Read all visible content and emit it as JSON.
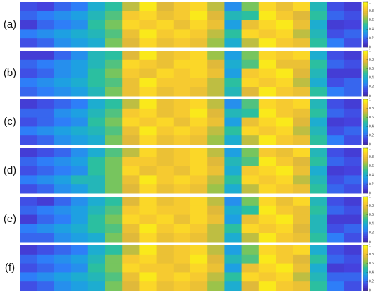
{
  "chart_data": [
    {
      "type": "heatmap",
      "label": "(a)",
      "zlim": [
        0,
        1
      ],
      "zticks": [
        0,
        0.2,
        0.4,
        0.6,
        0.8,
        1
      ],
      "colorscale": [
        "#3e26a8",
        "#4543e0",
        "#2e7ef8",
        "#1aa9dc",
        "#2bbfa0",
        "#8ac64e",
        "#e0b93a",
        "#fcce2e",
        "#f9fb0e"
      ],
      "values": [
        [
          0.15,
          0.12,
          0.2,
          0.25,
          0.4,
          0.5,
          0.7,
          0.95,
          0.75,
          0.85,
          0.9,
          0.7,
          0.3,
          0.6,
          0.9,
          0.8,
          0.9,
          0.45,
          0.15,
          0.1
        ],
        [
          0.2,
          0.25,
          0.3,
          0.35,
          0.45,
          0.55,
          0.85,
          0.9,
          0.8,
          0.85,
          0.95,
          0.75,
          0.45,
          0.5,
          0.95,
          0.85,
          0.75,
          0.5,
          0.2,
          0.15
        ],
        [
          0.1,
          0.2,
          0.25,
          0.3,
          0.5,
          0.6,
          0.9,
          0.85,
          0.9,
          0.8,
          0.9,
          0.8,
          0.35,
          0.8,
          0.9,
          0.95,
          0.8,
          0.4,
          0.1,
          0.12
        ],
        [
          0.25,
          0.3,
          0.35,
          0.4,
          0.45,
          0.55,
          0.8,
          0.95,
          0.85,
          0.9,
          0.85,
          0.7,
          0.5,
          0.9,
          0.85,
          0.9,
          0.7,
          0.45,
          0.15,
          0.2
        ],
        [
          0.15,
          0.2,
          0.3,
          0.35,
          0.4,
          0.6,
          0.75,
          0.9,
          0.8,
          0.85,
          0.8,
          0.65,
          0.4,
          0.7,
          0.95,
          0.85,
          0.8,
          0.5,
          0.25,
          0.15
        ]
      ]
    },
    {
      "type": "heatmap",
      "label": "(b)",
      "zlim": [
        0,
        1
      ],
      "zticks": [
        0,
        0.2,
        0.4,
        0.6,
        0.8,
        1
      ],
      "colorscale": [
        "#3e26a8",
        "#4543e0",
        "#2e7ef8",
        "#1aa9dc",
        "#2bbfa0",
        "#8ac64e",
        "#e0b93a",
        "#fcce2e",
        "#f9fb0e"
      ],
      "values": [
        [
          0.1,
          0.1,
          0.2,
          0.3,
          0.45,
          0.5,
          0.75,
          0.95,
          0.8,
          0.85,
          0.9,
          0.65,
          0.35,
          0.6,
          0.9,
          0.85,
          0.9,
          0.4,
          0.15,
          0.1
        ],
        [
          0.2,
          0.25,
          0.3,
          0.35,
          0.45,
          0.55,
          0.9,
          0.85,
          0.8,
          0.9,
          0.9,
          0.75,
          0.4,
          0.55,
          0.95,
          0.8,
          0.8,
          0.5,
          0.2,
          0.15
        ],
        [
          0.15,
          0.2,
          0.3,
          0.35,
          0.5,
          0.6,
          0.85,
          0.8,
          0.9,
          0.85,
          0.9,
          0.8,
          0.35,
          0.85,
          0.9,
          0.95,
          0.75,
          0.45,
          0.1,
          0.1
        ],
        [
          0.25,
          0.3,
          0.35,
          0.4,
          0.5,
          0.55,
          0.8,
          0.95,
          0.85,
          0.85,
          0.85,
          0.7,
          0.5,
          0.9,
          0.85,
          0.9,
          0.7,
          0.4,
          0.15,
          0.2
        ],
        [
          0.2,
          0.25,
          0.3,
          0.35,
          0.45,
          0.6,
          0.8,
          0.9,
          0.8,
          0.85,
          0.8,
          0.7,
          0.45,
          0.75,
          0.95,
          0.85,
          0.8,
          0.5,
          0.25,
          0.2
        ]
      ]
    },
    {
      "type": "heatmap",
      "label": "(c)",
      "zlim": [
        0,
        1
      ],
      "zticks": [
        0,
        0.2,
        0.4,
        0.6,
        0.8,
        1
      ],
      "colorscale": [
        "#3e26a8",
        "#4543e0",
        "#2e7ef8",
        "#1aa9dc",
        "#2bbfa0",
        "#8ac64e",
        "#e0b93a",
        "#fcce2e",
        "#f9fb0e"
      ],
      "values": [
        [
          0.1,
          0.15,
          0.2,
          0.25,
          0.4,
          0.5,
          0.7,
          0.95,
          0.8,
          0.85,
          0.9,
          0.7,
          0.3,
          0.55,
          0.9,
          0.85,
          0.9,
          0.45,
          0.15,
          0.1
        ],
        [
          0.2,
          0.2,
          0.3,
          0.35,
          0.45,
          0.55,
          0.85,
          0.9,
          0.8,
          0.85,
          0.95,
          0.75,
          0.45,
          0.5,
          0.95,
          0.85,
          0.8,
          0.5,
          0.2,
          0.15
        ],
        [
          0.15,
          0.2,
          0.25,
          0.3,
          0.5,
          0.6,
          0.9,
          0.85,
          0.9,
          0.8,
          0.9,
          0.8,
          0.35,
          0.8,
          0.9,
          0.95,
          0.75,
          0.4,
          0.1,
          0.12
        ],
        [
          0.25,
          0.3,
          0.35,
          0.4,
          0.45,
          0.55,
          0.8,
          0.95,
          0.85,
          0.9,
          0.85,
          0.7,
          0.5,
          0.9,
          0.85,
          0.9,
          0.7,
          0.45,
          0.15,
          0.2
        ],
        [
          0.15,
          0.2,
          0.3,
          0.35,
          0.4,
          0.6,
          0.75,
          0.9,
          0.8,
          0.85,
          0.8,
          0.65,
          0.4,
          0.7,
          0.95,
          0.85,
          0.8,
          0.5,
          0.25,
          0.15
        ]
      ]
    },
    {
      "type": "heatmap",
      "label": "(d)",
      "zlim": [
        0,
        1
      ],
      "zticks": [
        0,
        0.2,
        0.4,
        0.6,
        0.8,
        1
      ],
      "colorscale": [
        "#3e26a8",
        "#4543e0",
        "#2e7ef8",
        "#1aa9dc",
        "#2bbfa0",
        "#8ac64e",
        "#e0b93a",
        "#fcce2e",
        "#f9fb0e"
      ],
      "values": [
        [
          0.1,
          0.15,
          0.2,
          0.3,
          0.4,
          0.55,
          0.7,
          0.9,
          0.8,
          0.85,
          0.9,
          0.7,
          0.35,
          0.6,
          0.85,
          0.8,
          0.9,
          0.45,
          0.15,
          0.1
        ],
        [
          0.2,
          0.25,
          0.3,
          0.35,
          0.5,
          0.6,
          0.85,
          0.85,
          0.8,
          0.85,
          0.9,
          0.75,
          0.45,
          0.55,
          0.95,
          0.85,
          0.75,
          0.5,
          0.2,
          0.15
        ],
        [
          0.15,
          0.2,
          0.25,
          0.3,
          0.5,
          0.6,
          0.9,
          0.8,
          0.85,
          0.8,
          0.9,
          0.8,
          0.4,
          0.85,
          0.9,
          0.95,
          0.8,
          0.4,
          0.1,
          0.12
        ],
        [
          0.25,
          0.3,
          0.35,
          0.45,
          0.45,
          0.6,
          0.8,
          0.95,
          0.85,
          0.9,
          0.85,
          0.7,
          0.5,
          0.9,
          0.85,
          0.9,
          0.7,
          0.45,
          0.15,
          0.2
        ],
        [
          0.15,
          0.2,
          0.3,
          0.35,
          0.45,
          0.6,
          0.75,
          0.9,
          0.8,
          0.85,
          0.8,
          0.65,
          0.4,
          0.7,
          0.9,
          0.85,
          0.8,
          0.5,
          0.2,
          0.15
        ]
      ]
    },
    {
      "type": "heatmap",
      "label": "(e)",
      "zlim": [
        0,
        1
      ],
      "zticks": [
        0,
        0.2,
        0.4,
        0.6,
        0.8,
        1
      ],
      "colorscale": [
        "#3e26a8",
        "#4543e0",
        "#2e7ef8",
        "#1aa9dc",
        "#2bbfa0",
        "#8ac64e",
        "#e0b93a",
        "#fcce2e",
        "#f9fb0e"
      ],
      "values": [
        [
          0.15,
          0.1,
          0.2,
          0.3,
          0.4,
          0.5,
          0.75,
          0.9,
          0.8,
          0.85,
          0.9,
          0.7,
          0.3,
          0.6,
          0.9,
          0.8,
          0.9,
          0.45,
          0.15,
          0.1
        ],
        [
          0.2,
          0.25,
          0.3,
          0.35,
          0.45,
          0.55,
          0.85,
          0.9,
          0.85,
          0.85,
          0.9,
          0.75,
          0.4,
          0.5,
          0.95,
          0.85,
          0.8,
          0.5,
          0.2,
          0.15
        ],
        [
          0.1,
          0.2,
          0.25,
          0.35,
          0.5,
          0.6,
          0.9,
          0.85,
          0.9,
          0.8,
          0.9,
          0.8,
          0.35,
          0.8,
          0.9,
          0.95,
          0.8,
          0.45,
          0.1,
          0.1
        ],
        [
          0.25,
          0.3,
          0.35,
          0.4,
          0.5,
          0.55,
          0.8,
          0.95,
          0.85,
          0.9,
          0.85,
          0.7,
          0.5,
          0.9,
          0.85,
          0.9,
          0.75,
          0.45,
          0.15,
          0.2
        ],
        [
          0.2,
          0.2,
          0.3,
          0.35,
          0.4,
          0.6,
          0.75,
          0.9,
          0.8,
          0.85,
          0.8,
          0.7,
          0.4,
          0.7,
          0.95,
          0.85,
          0.8,
          0.5,
          0.25,
          0.15
        ]
      ]
    },
    {
      "type": "heatmap",
      "label": "(f)",
      "zlim": [
        0,
        1
      ],
      "zticks": [
        0,
        0.2,
        0.4,
        0.6,
        0.8,
        1
      ],
      "colorscale": [
        "#3e26a8",
        "#4543e0",
        "#2e7ef8",
        "#1aa9dc",
        "#2bbfa0",
        "#8ac64e",
        "#e0b93a",
        "#fcce2e",
        "#f9fb0e"
      ],
      "values": [
        [
          0.1,
          0.15,
          0.2,
          0.25,
          0.4,
          0.5,
          0.7,
          0.95,
          0.8,
          0.85,
          0.9,
          0.7,
          0.35,
          0.6,
          0.9,
          0.85,
          0.9,
          0.4,
          0.15,
          0.1
        ],
        [
          0.2,
          0.25,
          0.3,
          0.35,
          0.45,
          0.6,
          0.85,
          0.9,
          0.8,
          0.85,
          0.95,
          0.75,
          0.45,
          0.55,
          0.95,
          0.85,
          0.75,
          0.5,
          0.2,
          0.15
        ],
        [
          0.15,
          0.2,
          0.25,
          0.3,
          0.5,
          0.6,
          0.9,
          0.85,
          0.85,
          0.8,
          0.9,
          0.8,
          0.35,
          0.8,
          0.9,
          0.95,
          0.8,
          0.4,
          0.1,
          0.12
        ],
        [
          0.25,
          0.3,
          0.35,
          0.4,
          0.45,
          0.55,
          0.8,
          0.95,
          0.85,
          0.9,
          0.85,
          0.7,
          0.5,
          0.9,
          0.85,
          0.9,
          0.7,
          0.45,
          0.2,
          0.2
        ],
        [
          0.15,
          0.2,
          0.3,
          0.35,
          0.4,
          0.6,
          0.75,
          0.9,
          0.8,
          0.85,
          0.8,
          0.65,
          0.4,
          0.75,
          0.95,
          0.85,
          0.8,
          0.5,
          0.25,
          0.15
        ]
      ]
    }
  ]
}
